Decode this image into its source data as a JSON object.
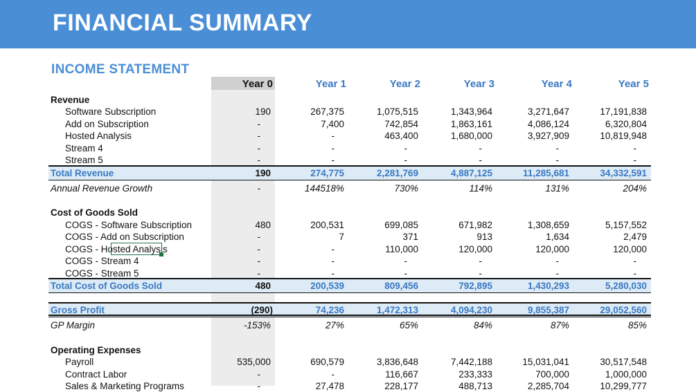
{
  "banner": {
    "title": "FINANCIAL SUMMARY"
  },
  "section": {
    "title": "INCOME STATEMENT"
  },
  "years": [
    "Year 0",
    "Year 1",
    "Year 2",
    "Year 3",
    "Year 4",
    "Year 5"
  ],
  "rows": {
    "revenue_header": "Revenue",
    "sw_sub": {
      "label": "Software Subscription",
      "v": [
        "190",
        "267,375",
        "1,075,515",
        "1,343,964",
        "3,271,647",
        "17,191,838"
      ]
    },
    "addon_sub": {
      "label": "Add on Subscription",
      "v": [
        "-",
        "7,400",
        "742,854",
        "1,863,161",
        "4,086,124",
        "6,320,804"
      ]
    },
    "hosted": {
      "label": "Hosted Analysis",
      "v": [
        "-",
        "-",
        "463,400",
        "1,680,000",
        "3,927,909",
        "10,819,948"
      ]
    },
    "stream4": {
      "label": "Stream 4",
      "v": [
        "-",
        "-",
        "-",
        "-",
        "-",
        "-"
      ]
    },
    "stream5": {
      "label": "Stream 5",
      "v": [
        "-",
        "-",
        "-",
        "-",
        "-",
        "-"
      ]
    },
    "total_revenue": {
      "label": "Total Revenue",
      "v": [
        "190",
        "274,775",
        "2,281,769",
        "4,887,125",
        "11,285,681",
        "34,332,591"
      ]
    },
    "growth": {
      "label": "Annual Revenue Growth",
      "v": [
        "-",
        "144518%",
        "730%",
        "114%",
        "131%",
        "204%"
      ]
    },
    "cogs_header": "Cost of Goods Sold",
    "cogs_sw": {
      "label": "COGS - Software Subscription",
      "v": [
        "480",
        "200,531",
        "699,085",
        "671,982",
        "1,308,659",
        "5,157,552"
      ]
    },
    "cogs_addon": {
      "label": "COGS - Add on Subscription",
      "v": [
        "-",
        "7",
        "371",
        "913",
        "1,634",
        "2,479"
      ]
    },
    "cogs_hosted": {
      "label": "COGS - Hosted Analysis",
      "v": [
        "-",
        "-",
        "110,000",
        "120,000",
        "120,000",
        "120,000"
      ]
    },
    "cogs_s4": {
      "label": "COGS - Stream 4",
      "v": [
        "-",
        "-",
        "-",
        "-",
        "-",
        "-"
      ]
    },
    "cogs_s5": {
      "label": "COGS - Stream 5",
      "v": [
        "-",
        "-",
        "-",
        "-",
        "-",
        "-"
      ]
    },
    "total_cogs": {
      "label": "Total Cost of Goods Sold",
      "v": [
        "480",
        "200,539",
        "809,456",
        "792,895",
        "1,430,293",
        "5,280,030"
      ]
    },
    "gross_profit": {
      "label": "Gross Profit",
      "v": [
        "(290)",
        "74,236",
        "1,472,313",
        "4,094,230",
        "9,855,387",
        "29,052,560"
      ]
    },
    "gp_margin": {
      "label": "GP Margin",
      "v": [
        "-153%",
        "27%",
        "65%",
        "84%",
        "87%",
        "85%"
      ]
    },
    "opex_header": "Operating Expenses",
    "payroll": {
      "label": "Payroll",
      "v": [
        "535,000",
        "690,579",
        "3,836,648",
        "7,442,188",
        "15,031,041",
        "30,517,548"
      ]
    },
    "contract": {
      "label": "Contract Labor",
      "v": [
        "-",
        "-",
        "116,667",
        "233,333",
        "700,000",
        "1,000,000"
      ]
    },
    "sales_mkt": {
      "label": "Sales & Marketing Programs",
      "v": [
        "-",
        "27,478",
        "228,177",
        "488,713",
        "2,285,704",
        "10,299,777"
      ]
    }
  }
}
